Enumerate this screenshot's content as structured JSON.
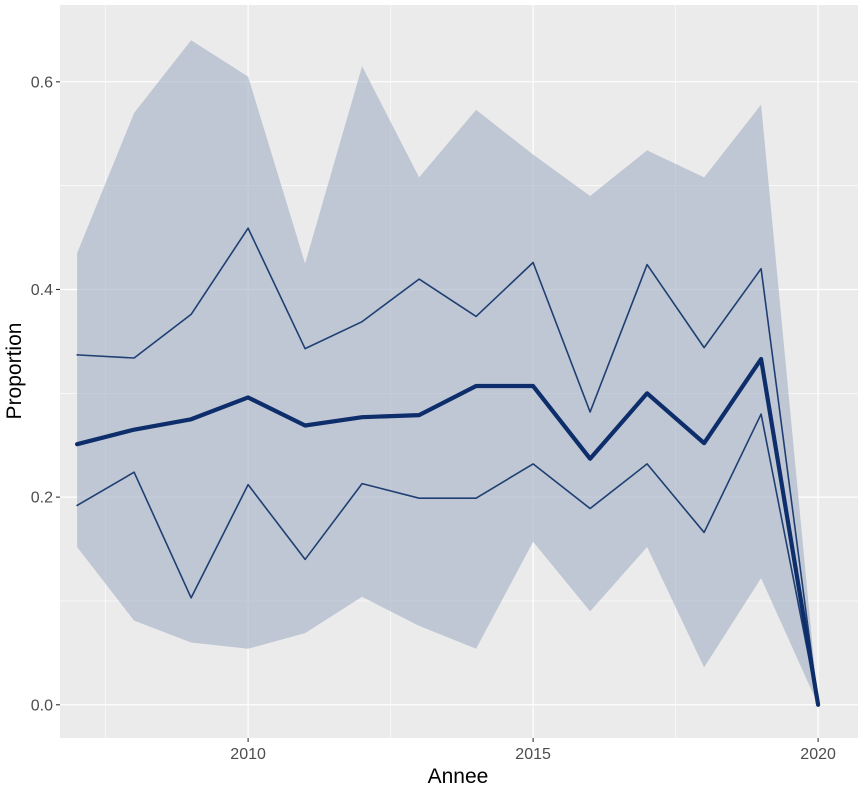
{
  "chart_data": {
    "type": "line",
    "title": "",
    "xlabel": "Annee",
    "ylabel": "Proportion",
    "x": [
      2007,
      2008,
      2009,
      2010,
      2011,
      2012,
      2013,
      2014,
      2015,
      2016,
      2017,
      2018,
      2019,
      2020
    ],
    "xlim": [
      2006.7,
      2020.7
    ],
    "ylim": [
      -0.032,
      0.674
    ],
    "x_ticks": [
      2010,
      2015,
      2020
    ],
    "x_tick_labels": [
      "2010",
      "2015",
      "2020"
    ],
    "y_ticks": [
      0.0,
      0.2,
      0.4,
      0.6
    ],
    "y_tick_labels": [
      "0.0",
      "0.2",
      "0.4",
      "0.6"
    ],
    "grid": true,
    "legend": "none",
    "band": {
      "lower": [
        0.152,
        0.081,
        0.06,
        0.054,
        0.069,
        0.104,
        0.076,
        0.054,
        0.157,
        0.09,
        0.152,
        0.036,
        0.122,
        0.0
      ],
      "upper": [
        0.435,
        0.57,
        0.64,
        0.605,
        0.425,
        0.615,
        0.508,
        0.573,
        0.53,
        0.49,
        0.534,
        0.508,
        0.578,
        0.0
      ],
      "color": "#a8b4c8"
    },
    "series": [
      {
        "values": [
          0.192,
          0.224,
          0.103,
          0.212,
          0.14,
          0.213,
          0.199,
          0.199,
          0.232,
          0.189,
          0.232,
          0.166,
          0.28,
          0.0
        ],
        "color": "#1f3f73",
        "width": 1.6
      },
      {
        "values": [
          0.337,
          0.334,
          0.376,
          0.459,
          0.343,
          0.369,
          0.41,
          0.374,
          0.426,
          0.282,
          0.424,
          0.344,
          0.42,
          0.0
        ],
        "color": "#1f3f73",
        "width": 1.6
      },
      {
        "values": [
          0.251,
          0.265,
          0.275,
          0.296,
          0.269,
          0.277,
          0.279,
          0.307,
          0.307,
          0.237,
          0.3,
          0.252,
          0.333,
          0.0
        ],
        "color": "#0d2d6b",
        "width": 4.2
      }
    ],
    "colors": {
      "panel": "#ebebeb",
      "grid_major": "#ffffff"
    }
  }
}
